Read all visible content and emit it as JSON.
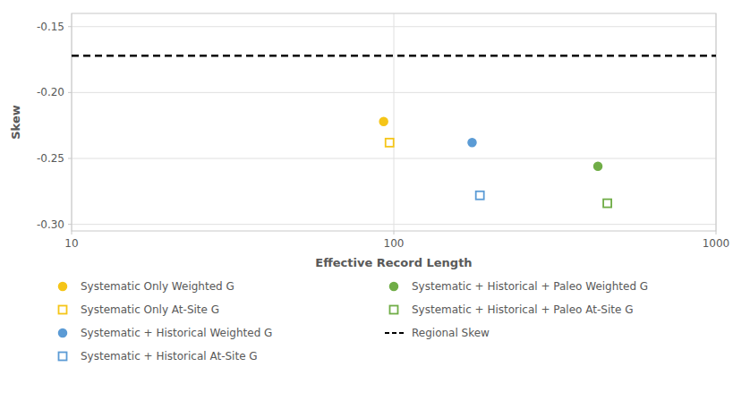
{
  "chart_data": {
    "type": "scatter",
    "xlabel": "Effective Record Length",
    "ylabel": "Skew",
    "log": "x",
    "xlim": [
      10,
      1000
    ],
    "ylim": [
      -0.305,
      -0.14
    ],
    "xticks": [
      10,
      100,
      1000
    ],
    "yticks": [
      -0.15,
      {
        "value": -0.2,
        "label": "-0.20"
      },
      -0.25,
      {
        "value": -0.3,
        "label": "-0.30"
      }
    ],
    "grid": true,
    "legend": "bottom",
    "series": [
      {
        "name": "Systematic Only Weighted G",
        "color": "#f5c518",
        "marker": "circle",
        "x": [
          93
        ],
        "values": [
          -0.222
        ]
      },
      {
        "name": "Systematic Only At-Site G",
        "color": "#f5c518",
        "marker": "open-square",
        "x": [
          97
        ],
        "values": [
          -0.238
        ]
      },
      {
        "name": "Systematic + Historical Weighted G",
        "color": "#5b9bd5",
        "marker": "circle",
        "x": [
          175
        ],
        "values": [
          -0.238
        ]
      },
      {
        "name": "Systematic + Historical At-Site G",
        "color": "#5b9bd5",
        "marker": "open-square",
        "x": [
          185
        ],
        "values": [
          -0.278
        ]
      },
      {
        "name": "Systematic + Historical + Paleo Weighted G",
        "color": "#70ad47",
        "marker": "circle",
        "x": [
          430
        ],
        "values": [
          -0.256
        ]
      },
      {
        "name": "Systematic + Historical + Paleo At-Site G",
        "color": "#70ad47",
        "marker": "open-square",
        "x": [
          460
        ],
        "values": [
          -0.284
        ]
      },
      {
        "name": "Regional Skew",
        "type": "hline",
        "color": "#000000",
        "line_style": "dashed",
        "values": [
          -0.172
        ]
      }
    ]
  }
}
